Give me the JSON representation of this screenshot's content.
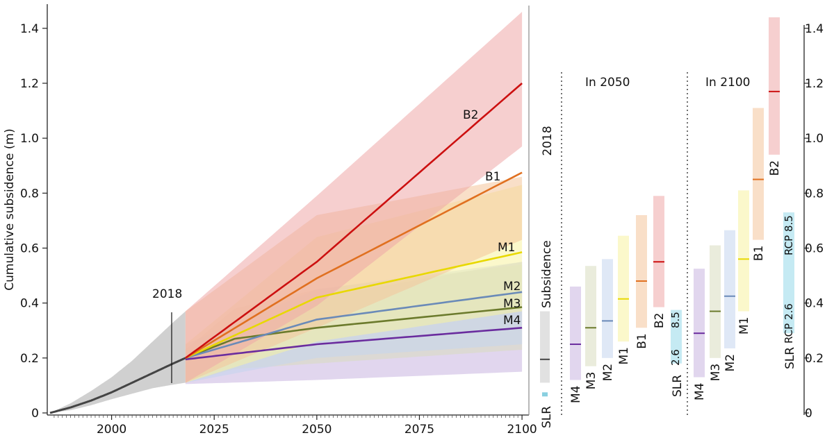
{
  "chart_data": {
    "type": "line",
    "ylabel": "Cumulative subsidence (m)",
    "xlim": [
      1985,
      2101
    ],
    "ylim": [
      0,
      1.45
    ],
    "x_ticks": [
      2000,
      2025,
      2050,
      2075,
      2100
    ],
    "x_tick_labels": [
      "2000",
      "2025",
      "2050",
      "2075",
      "2100"
    ],
    "y_ticks": [
      0,
      0.2,
      0.4,
      0.6,
      0.8,
      1.0,
      1.2,
      1.4
    ],
    "y_tick_labels": [
      "0",
      "0.2",
      "0.4",
      "0.6",
      "0.8",
      "1.0",
      "1.2",
      "1.4"
    ],
    "annotation_2018": "2018",
    "historical": {
      "x": [
        1985,
        1990,
        1995,
        2000,
        2005,
        2010,
        2015,
        2018
      ],
      "y": [
        0.0,
        0.02,
        0.045,
        0.075,
        0.11,
        0.145,
        0.18,
        0.2
      ],
      "band_low": [
        0.0,
        0.01,
        0.028,
        0.05,
        0.07,
        0.09,
        0.103,
        0.11
      ],
      "band_high": [
        0.0,
        0.035,
        0.08,
        0.13,
        0.19,
        0.26,
        0.33,
        0.37
      ],
      "color": "#444444",
      "band_color": "#c8c8c8"
    },
    "series": [
      {
        "name": "M4",
        "color": "#6a2c9e",
        "band_color": "#c8b5e0",
        "x": [
          2018,
          2050,
          2100
        ],
        "y": [
          0.195,
          0.25,
          0.31
        ],
        "band_low": [
          0.105,
          0.12,
          0.15
        ],
        "band_high": [
          0.21,
          0.42,
          0.55
        ]
      },
      {
        "name": "M3",
        "color": "#6b7a2c",
        "band_color": "#d8dcc0",
        "x": [
          2018,
          2030,
          2050,
          2100
        ],
        "y": [
          0.2,
          0.27,
          0.31,
          0.385
        ],
        "band_low": [
          0.11,
          0.16,
          0.18,
          0.23
        ],
        "band_high": [
          0.23,
          0.38,
          0.45,
          0.54
        ]
      },
      {
        "name": "M2",
        "color": "#6a8ab8",
        "band_color": "#c5d6ee",
        "x": [
          2018,
          2050,
          2100
        ],
        "y": [
          0.2,
          0.34,
          0.44
        ],
        "band_low": [
          0.11,
          0.2,
          0.25
        ],
        "band_high": [
          0.25,
          0.45,
          0.55
        ]
      },
      {
        "name": "M1",
        "color": "#e8d800",
        "band_color": "#f8f3a0",
        "x": [
          2018,
          2050,
          2100
        ],
        "y": [
          0.2,
          0.42,
          0.585
        ],
        "band_low": [
          0.11,
          0.26,
          0.37
        ],
        "band_high": [
          0.25,
          0.64,
          0.83
        ]
      },
      {
        "name": "B1",
        "color": "#e07020",
        "band_color": "#f4c49a",
        "x": [
          2018,
          2050,
          2100
        ],
        "y": [
          0.2,
          0.49,
          0.875
        ],
        "band_low": [
          0.11,
          0.31,
          0.63
        ],
        "band_high": [
          0.37,
          0.72,
          0.86
        ]
      },
      {
        "name": "B2",
        "color": "#cc1010",
        "band_color": "#eea8a8",
        "x": [
          2018,
          2050,
          2100
        ],
        "y": [
          0.2,
          0.55,
          1.2
        ],
        "band_low": [
          0.11,
          0.39,
          0.97
        ],
        "band_high": [
          0.37,
          0.79,
          1.46
        ]
      }
    ],
    "panels": {
      "label_2018": "2018",
      "label_2050": "In 2050",
      "label_2100": "In 2100",
      "subsidence_label": "Subsidence",
      "slr_label": "SLR",
      "rcp26_label": "RCP 2.6",
      "rcp85_label": "RCP 8.5",
      "slr_short_26": "2.6",
      "slr_short_85": "8.5",
      "bar_2018": {
        "name": "2018",
        "low": 0.11,
        "high": 0.37,
        "median": 0.195,
        "color": "#444444",
        "band_color": "#c8c8c8"
      },
      "slr_2018": {
        "low": 0.06,
        "high": 0.075,
        "color": "#8ad0e0"
      },
      "bars_2050": [
        {
          "name": "M4",
          "low": 0.12,
          "high": 0.46,
          "median": 0.25
        },
        {
          "name": "M3",
          "low": 0.17,
          "high": 0.535,
          "median": 0.31
        },
        {
          "name": "M2",
          "low": 0.2,
          "high": 0.56,
          "median": 0.335
        },
        {
          "name": "M1",
          "low": 0.26,
          "high": 0.645,
          "median": 0.415
        },
        {
          "name": "B1",
          "low": 0.31,
          "high": 0.72,
          "median": 0.48
        },
        {
          "name": "B2",
          "low": 0.385,
          "high": 0.79,
          "median": 0.55
        }
      ],
      "slr_2050": {
        "low": 0.18,
        "high": 0.375
      },
      "bars_2100": [
        {
          "name": "M4",
          "low": 0.13,
          "high": 0.525,
          "median": 0.29
        },
        {
          "name": "M3",
          "low": 0.2,
          "high": 0.61,
          "median": 0.37
        },
        {
          "name": "M2",
          "low": 0.235,
          "high": 0.665,
          "median": 0.425
        },
        {
          "name": "M1",
          "low": 0.37,
          "high": 0.81,
          "median": 0.56
        },
        {
          "name": "B1",
          "low": 0.63,
          "high": 1.11,
          "median": 0.85
        },
        {
          "name": "B2",
          "low": 0.94,
          "high": 1.44,
          "median": 1.17
        }
      ],
      "slr_2100": {
        "low": 0.29,
        "high": 0.73
      }
    }
  }
}
